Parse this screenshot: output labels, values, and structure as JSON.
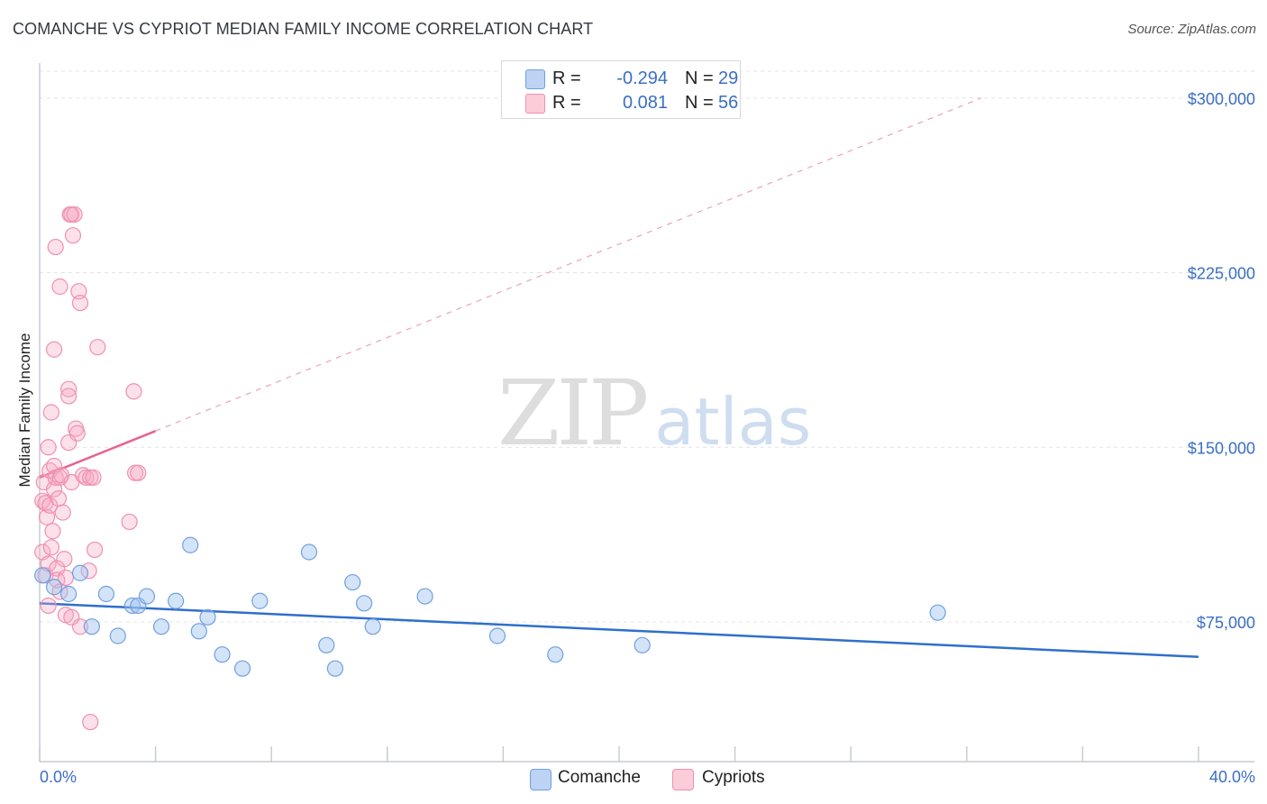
{
  "title": "COMANCHE VS CYPRIOT MEDIAN FAMILY INCOME CORRELATION CHART",
  "source": "Source: ZipAtlas.com",
  "watermark": {
    "zip": "ZIP",
    "atlas": "atlas"
  },
  "legend": {
    "r_label": "R =",
    "n_label": "N =",
    "series": [
      {
        "name": "Comanche",
        "r": "-0.294",
        "n": "29"
      },
      {
        "name": "Cypriots",
        "r": "0.081",
        "n": "56"
      }
    ]
  },
  "chart_data": {
    "type": "scatter",
    "title": "COMANCHE VS CYPRIOT MEDIAN FAMILY INCOME CORRELATION CHART",
    "xlabel": "",
    "ylabel": "Median Family Income",
    "xlim": [
      0,
      40
    ],
    "ylim": [
      15000,
      315000
    ],
    "x_tick_labels": [
      "0.0%",
      "40.0%"
    ],
    "y_ticks": [
      75000,
      150000,
      225000,
      300000
    ],
    "y_tick_labels": [
      "$75,000",
      "$150,000",
      "$225,000",
      "$300,000"
    ],
    "grid": true,
    "colors": {
      "comanche": "#6fa0e0",
      "comanche_line": "#2f6fcc",
      "cypriots": "#f08fb0",
      "cypriots_line": "#e8628f",
      "tick_text": "#3a6fc4"
    },
    "series": [
      {
        "name": "Comanche",
        "trend": {
          "x": [
            0,
            40
          ],
          "y": [
            83000,
            60000
          ],
          "style": "solid"
        },
        "points": [
          {
            "x": 0.1,
            "y": 95000
          },
          {
            "x": 0.5,
            "y": 90000
          },
          {
            "x": 1.0,
            "y": 87000
          },
          {
            "x": 1.4,
            "y": 96000
          },
          {
            "x": 1.8,
            "y": 73000
          },
          {
            "x": 2.3,
            "y": 87000
          },
          {
            "x": 2.7,
            "y": 69000
          },
          {
            "x": 3.2,
            "y": 82000
          },
          {
            "x": 3.4,
            "y": 82000
          },
          {
            "x": 3.7,
            "y": 86000
          },
          {
            "x": 4.2,
            "y": 73000
          },
          {
            "x": 4.7,
            "y": 84000
          },
          {
            "x": 5.2,
            "y": 108000
          },
          {
            "x": 5.5,
            "y": 71000
          },
          {
            "x": 5.8,
            "y": 77000
          },
          {
            "x": 6.3,
            "y": 61000
          },
          {
            "x": 7.0,
            "y": 55000
          },
          {
            "x": 7.6,
            "y": 84000
          },
          {
            "x": 9.3,
            "y": 105000
          },
          {
            "x": 9.9,
            "y": 65000
          },
          {
            "x": 10.2,
            "y": 55000
          },
          {
            "x": 10.8,
            "y": 92000
          },
          {
            "x": 11.2,
            "y": 83000
          },
          {
            "x": 11.5,
            "y": 73000
          },
          {
            "x": 13.3,
            "y": 86000
          },
          {
            "x": 15.8,
            "y": 69000
          },
          {
            "x": 17.8,
            "y": 61000
          },
          {
            "x": 20.8,
            "y": 65000
          },
          {
            "x": 31.0,
            "y": 79000
          }
        ]
      },
      {
        "name": "Cypriots",
        "trend": {
          "x": [
            0,
            4
          ],
          "y": [
            137000,
            157000
          ],
          "style": "solid",
          "extension": {
            "x": [
              4,
              32.5
            ],
            "y": [
              157000,
              300000
            ],
            "style": "dashed"
          }
        },
        "points": [
          {
            "x": 0.1,
            "y": 105000
          },
          {
            "x": 0.1,
            "y": 127000
          },
          {
            "x": 0.15,
            "y": 135000
          },
          {
            "x": 0.2,
            "y": 126000
          },
          {
            "x": 0.2,
            "y": 95000
          },
          {
            "x": 0.25,
            "y": 120000
          },
          {
            "x": 0.3,
            "y": 150000
          },
          {
            "x": 0.3,
            "y": 100000
          },
          {
            "x": 0.3,
            "y": 82000
          },
          {
            "x": 0.35,
            "y": 140000
          },
          {
            "x": 0.35,
            "y": 125000
          },
          {
            "x": 0.4,
            "y": 165000
          },
          {
            "x": 0.4,
            "y": 107000
          },
          {
            "x": 0.45,
            "y": 114000
          },
          {
            "x": 0.5,
            "y": 192000
          },
          {
            "x": 0.5,
            "y": 142000
          },
          {
            "x": 0.5,
            "y": 132000
          },
          {
            "x": 0.55,
            "y": 236000
          },
          {
            "x": 0.55,
            "y": 137000
          },
          {
            "x": 0.6,
            "y": 98000
          },
          {
            "x": 0.6,
            "y": 93000
          },
          {
            "x": 0.65,
            "y": 128000
          },
          {
            "x": 0.7,
            "y": 219000
          },
          {
            "x": 0.7,
            "y": 137000
          },
          {
            "x": 0.7,
            "y": 88000
          },
          {
            "x": 0.75,
            "y": 138000
          },
          {
            "x": 0.8,
            "y": 122000
          },
          {
            "x": 0.85,
            "y": 102000
          },
          {
            "x": 0.9,
            "y": 94000
          },
          {
            "x": 0.9,
            "y": 78000
          },
          {
            "x": 1.0,
            "y": 175000
          },
          {
            "x": 1.0,
            "y": 172000
          },
          {
            "x": 1.0,
            "y": 152000
          },
          {
            "x": 1.05,
            "y": 250000
          },
          {
            "x": 1.1,
            "y": 250000
          },
          {
            "x": 1.1,
            "y": 135000
          },
          {
            "x": 1.1,
            "y": 77000
          },
          {
            "x": 1.15,
            "y": 241000
          },
          {
            "x": 1.2,
            "y": 250000
          },
          {
            "x": 1.25,
            "y": 158000
          },
          {
            "x": 1.3,
            "y": 156000
          },
          {
            "x": 1.35,
            "y": 217000
          },
          {
            "x": 1.4,
            "y": 212000
          },
          {
            "x": 1.4,
            "y": 73000
          },
          {
            "x": 1.5,
            "y": 138000
          },
          {
            "x": 1.6,
            "y": 137000
          },
          {
            "x": 1.7,
            "y": 97000
          },
          {
            "x": 1.75,
            "y": 137000
          },
          {
            "x": 1.85,
            "y": 137000
          },
          {
            "x": 1.9,
            "y": 106000
          },
          {
            "x": 2.0,
            "y": 193000
          },
          {
            "x": 3.1,
            "y": 118000
          },
          {
            "x": 3.25,
            "y": 174000
          },
          {
            "x": 3.3,
            "y": 139000
          },
          {
            "x": 3.4,
            "y": 139000
          },
          {
            "x": 1.75,
            "y": 32000
          }
        ]
      }
    ]
  }
}
